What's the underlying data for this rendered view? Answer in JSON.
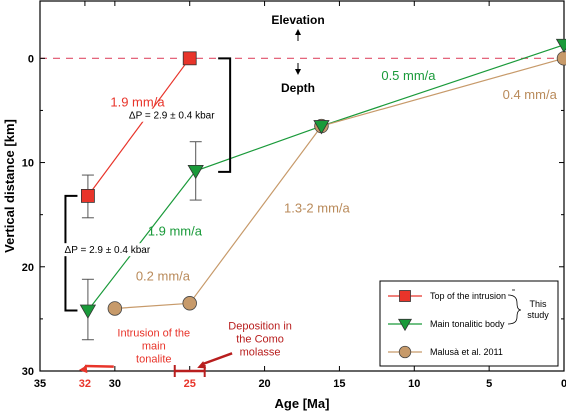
{
  "chart_data": {
    "type": "line",
    "xlabel": "Age [Ma]",
    "ylabel": "Vertical distance [km]",
    "xlim": [
      35,
      0
    ],
    "ylim": [
      -5.5,
      30
    ],
    "x_ticks": [
      35,
      32,
      30,
      25,
      20,
      15,
      10,
      5,
      0
    ],
    "y_ticks": [
      0,
      10,
      20,
      30
    ],
    "highlight_ticks": [
      32,
      25
    ],
    "reference_line": {
      "y": 0,
      "style": "dashed",
      "color": "#e0506a"
    },
    "series": [
      {
        "key": "top",
        "marker": "square",
        "color": "#e8342a",
        "line_color": "#e8342a",
        "points": [
          {
            "x": 31.8,
            "y": 13.2,
            "err": [
              11.2,
              15.3
            ]
          },
          {
            "x": 25.0,
            "y": 0.0
          }
        ]
      },
      {
        "key": "main",
        "marker": "triangle-down",
        "color": "#1a9a3a",
        "line_color": "#1a9a3a",
        "points": [
          {
            "x": 31.8,
            "y": 24.2,
            "err": [
              21.2,
              27.0
            ]
          },
          {
            "x": 24.6,
            "y": 10.8,
            "err": [
              8.0,
              13.6
            ]
          },
          {
            "x": 16.2,
            "y": 6.5
          },
          {
            "x": 0.0,
            "y": -1.3
          }
        ]
      },
      {
        "key": "malusa",
        "marker": "circle",
        "color": "#c79a6a",
        "line_color": "#c79a6a",
        "points": [
          {
            "x": 30.0,
            "y": 24.0
          },
          {
            "x": 25.0,
            "y": 23.5
          },
          {
            "x": 16.2,
            "y": 6.5
          },
          {
            "x": 0.0,
            "y": 0.0
          }
        ]
      }
    ],
    "rate_labels": [
      {
        "text": "1.9 mm/a",
        "x": 30.3,
        "y": 4.6,
        "color": "#e8342a"
      },
      {
        "text": "1.9 mm/a",
        "x": 27.8,
        "y": 17.0,
        "color": "#1a9a3a"
      },
      {
        "text": "0.5 mm/a",
        "x": 12.2,
        "y": 2.1,
        "color": "#1a9a3a"
      },
      {
        "text": "0.4 mm/a",
        "x": 4.1,
        "y": 3.9,
        "color": "#b98a5a"
      },
      {
        "text": "1.3-2 mm/a",
        "x": 18.7,
        "y": 14.8,
        "color": "#b98a5a"
      },
      {
        "text": "0.2 mm/a",
        "x": 28.6,
        "y": 21.3,
        "color": "#b98a5a"
      }
    ],
    "pressure_brackets": [
      {
        "text": "ΔP = 2.9 ± 0.4 kbar",
        "x_bracket": 22.3,
        "y1": 0,
        "y2": 10.9,
        "side": "right",
        "label_x": 26.2,
        "label_y": 5.7
      },
      {
        "text": "ΔP = 2.9 ± 0.4 kbar",
        "x_bracket": 33.3,
        "y1": 13.2,
        "y2": 24.2,
        "side": "left",
        "label_x": 30.5,
        "label_y": 18.6
      }
    ],
    "elevation_text": "Elevation",
    "depth_text": "Depth",
    "annotations": [
      {
        "lines": [
          "Intrusion of the",
          "main",
          "tonalite"
        ],
        "x": 27.4,
        "y": 26.7,
        "color": "#e8342a",
        "arrow_to": [
          32.4,
          29.9
        ]
      },
      {
        "lines": [
          "Deposition in",
          "the Como",
          "molasse"
        ],
        "x": 20.3,
        "y": 26.0,
        "color": "#b81e1e",
        "arrow_to": [
          24.5,
          29.7
        ]
      }
    ],
    "deposition_range": {
      "x1": 26.0,
      "x2": 24.0,
      "y": 30,
      "color": "#b81e1e"
    },
    "legend": {
      "position": "bottom-right",
      "entries": [
        {
          "series": "top",
          "label": "Top of the intrusion"
        },
        {
          "series": "main",
          "label": "Main tonalitic body"
        },
        {
          "series": "malusa",
          "label": "Malusà et al. 2011"
        }
      ],
      "group_label": [
        "This",
        "study"
      ]
    }
  }
}
